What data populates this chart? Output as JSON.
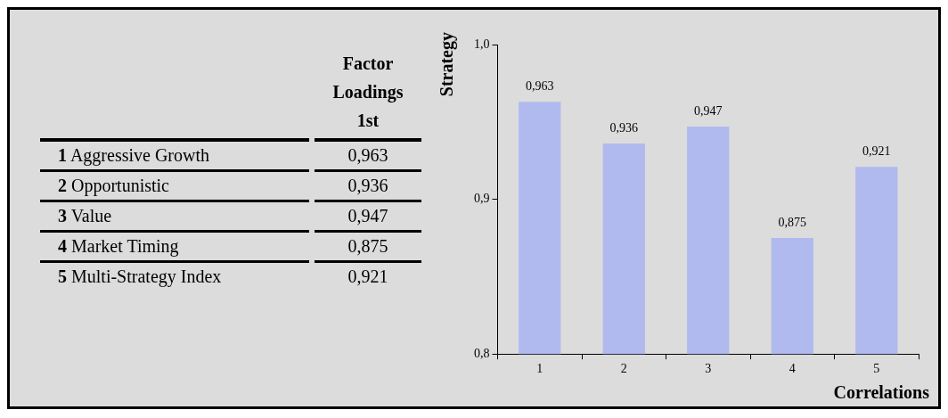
{
  "chart_data": {
    "type": "bar",
    "categories": [
      "1",
      "2",
      "3",
      "4",
      "5"
    ],
    "values": [
      0.963,
      0.936,
      0.947,
      0.875,
      0.921
    ],
    "value_labels": [
      "0,963",
      "0,936",
      "0,947",
      "0,875",
      "0,921"
    ],
    "color": "#b0baee",
    "ylim": [
      0.8,
      1.0
    ],
    "yticks": [
      {
        "value": 0.8,
        "label": "0,8"
      },
      {
        "value": 0.9,
        "label": "0,9"
      },
      {
        "value": 1.0,
        "label": "1,0"
      }
    ],
    "xlabel": "Correlations",
    "ylabel": "Strategy",
    "annotations": [
      "Factor Loadings 1st",
      "Aggressive Growth",
      "Opportunistic",
      "Value",
      "Market Timing",
      "Multi-Strategy Index"
    ],
    "grid": false,
    "legend": false
  }
}
